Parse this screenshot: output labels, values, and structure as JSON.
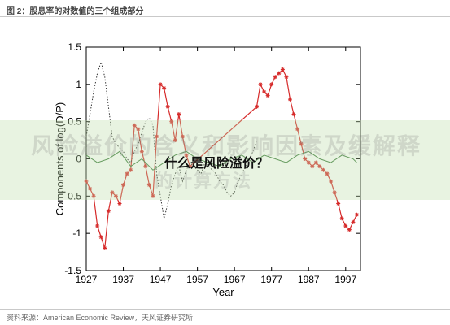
{
  "header": {
    "caption": "图 2：股息率的对数值的三个组成部分"
  },
  "footer": {
    "source": "资料来源：American Economic Review，天风证券研究所"
  },
  "overlay": {
    "title": "风险溢价的含义和影响因素及缓解释",
    "subtitle": "的计算方法",
    "front_text": "什么是风险溢价？"
  },
  "colors": {
    "red_series": "#d62a2a",
    "green_series": "#3a7a3a",
    "black_series": "#333333"
  },
  "chart_data": {
    "type": "line",
    "xlabel": "Year",
    "ylabel": "Components of log(D/P)",
    "xlim": [
      1927,
      2001
    ],
    "ylim": [
      -1.5,
      1.5
    ],
    "xticks": [
      1927,
      1937,
      1947,
      1957,
      1967,
      1977,
      1987,
      1997
    ],
    "yticks": [
      -1.5,
      -1,
      -0.5,
      0,
      0.5,
      1,
      1.5
    ],
    "series": [
      {
        "style": "red-star",
        "x": [
          1927,
          1928,
          1929,
          1930,
          1931,
          1932,
          1933,
          1934,
          1935,
          1936,
          1937,
          1938,
          1939,
          1940,
          1941,
          1942,
          1943,
          1944,
          1945,
          1946,
          1947,
          1948,
          1949,
          1950,
          1951,
          1952,
          1953,
          1954,
          1955,
          1973,
          1974,
          1975,
          1976,
          1977,
          1978,
          1979,
          1980,
          1981,
          1982,
          1983,
          1984,
          1985,
          1986,
          1987,
          1988,
          1989,
          1990,
          1991,
          1992,
          1993,
          1994,
          1995,
          1996,
          1997,
          1998,
          1999,
          2000
        ],
        "y": [
          -0.3,
          -0.4,
          -0.5,
          -0.9,
          -1.05,
          -1.2,
          -0.7,
          -0.45,
          -0.5,
          -0.6,
          -0.35,
          -0.2,
          -0.15,
          0.45,
          0.4,
          0.1,
          -0.1,
          -0.35,
          -0.5,
          0.3,
          1.0,
          0.95,
          0.7,
          0.5,
          0.25,
          0.6,
          0.3,
          0.05,
          -0.1,
          0.7,
          1.0,
          0.9,
          0.85,
          1.0,
          1.1,
          1.15,
          1.2,
          1.1,
          0.8,
          0.6,
          0.4,
          0.2,
          0.0,
          -0.05,
          -0.1,
          -0.05,
          -0.1,
          -0.15,
          -0.2,
          -0.3,
          -0.45,
          -0.6,
          -0.8,
          -0.9,
          -0.95,
          -0.85,
          -0.75
        ]
      },
      {
        "style": "black-dotted",
        "x": [
          1927,
          1928,
          1929,
          1930,
          1931,
          1932,
          1933,
          1934,
          1935,
          1936,
          1937,
          1938,
          1939,
          1940,
          1941,
          1942,
          1943,
          1944,
          1945,
          1946,
          1947,
          1948,
          1949,
          1950,
          1951,
          1952,
          1953,
          1954,
          1955,
          1956,
          1957,
          1958,
          1959,
          1960,
          1961,
          1962,
          1963,
          1964,
          1965,
          1966,
          1967,
          1968,
          1969,
          1970,
          1971,
          1972,
          1973
        ],
        "y": [
          0.3,
          0.6,
          0.9,
          1.15,
          1.3,
          1.1,
          0.7,
          0.3,
          0.2,
          0.15,
          0.1,
          0.0,
          -0.05,
          0.1,
          0.2,
          0.35,
          0.5,
          0.55,
          0.45,
          -0.2,
          -0.5,
          -0.8,
          -0.6,
          -0.35,
          -0.2,
          -0.1,
          -0.3,
          -0.15,
          -0.05,
          -0.1,
          -0.15,
          -0.2,
          -0.05,
          -0.1,
          -0.15,
          -0.2,
          -0.3,
          -0.35,
          -0.45,
          -0.5,
          -0.45,
          -0.3,
          -0.2,
          -0.1,
          0.0,
          0.1,
          0.25
        ]
      },
      {
        "style": "green-solid",
        "x": [
          1927,
          1930,
          1933,
          1936,
          1939,
          1942,
          1945,
          1948,
          1951,
          1954,
          1957,
          1960,
          1963,
          1966,
          1969,
          1972,
          1975,
          1978,
          1981,
          1984,
          1987,
          1990,
          1993,
          1996,
          1999,
          2000
        ],
        "y": [
          0.05,
          -0.05,
          0.0,
          0.1,
          -0.1,
          0.0,
          -0.15,
          -0.05,
          0.05,
          0.1,
          0.0,
          -0.05,
          -0.1,
          0.0,
          0.05,
          -0.05,
          0.05,
          0.0,
          -0.05,
          0.05,
          0.1,
          0.0,
          -0.05,
          0.05,
          0.0,
          -0.05
        ]
      }
    ]
  }
}
